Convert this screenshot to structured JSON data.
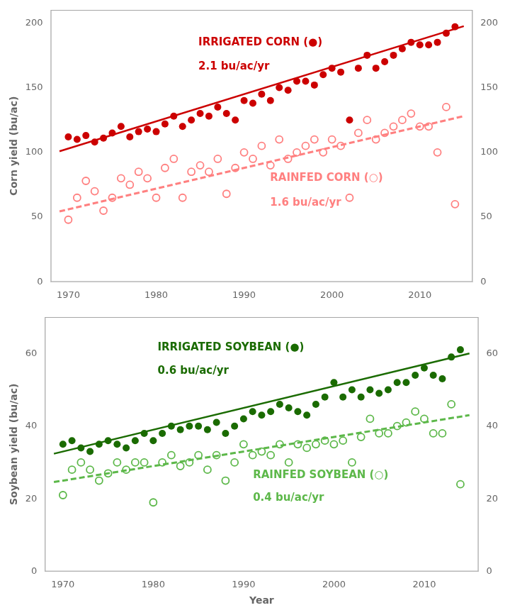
{
  "chart_data": [
    {
      "type": "scatter",
      "ylabel": "Corn yield (bu/ac)",
      "xlim": [
        1968,
        2016
      ],
      "xticks": [
        1970,
        1980,
        1990,
        2000,
        2010
      ],
      "ylim": [
        0,
        210
      ],
      "yticks": [
        0,
        50,
        100,
        150,
        200
      ],
      "y2lim": [
        0,
        210
      ],
      "y2ticks": [
        0,
        50,
        100,
        150,
        200
      ],
      "grid": false,
      "series": [
        {
          "type": "scatter",
          "marker": "circle",
          "color": "#CC0000",
          "x": [
            1970,
            1971,
            1972,
            1973,
            1974,
            1975,
            1976,
            1977,
            1978,
            1979,
            1980,
            1981,
            1982,
            1983,
            1984,
            1985,
            1986,
            1987,
            1988,
            1989,
            1990,
            1991,
            1992,
            1993,
            1994,
            1995,
            1996,
            1997,
            1998,
            1999,
            2000,
            2001,
            2002,
            2003,
            2004,
            2005,
            2006,
            2007,
            2008,
            2009,
            2010,
            2011,
            2012,
            2013,
            2014
          ],
          "values": [
            112,
            110,
            113,
            108,
            111,
            115,
            120,
            112,
            116,
            118,
            116,
            122,
            128,
            120,
            125,
            130,
            128,
            135,
            130,
            125,
            140,
            138,
            145,
            140,
            150,
            148,
            155,
            155,
            152,
            160,
            165,
            162,
            125,
            165,
            175,
            165,
            170,
            175,
            180,
            185,
            183,
            183,
            185,
            192,
            197
          ]
        },
        {
          "type": "scatter",
          "marker": "open_circle",
          "color": "#FF8080",
          "x": [
            1970,
            1971,
            1972,
            1973,
            1974,
            1975,
            1976,
            1977,
            1978,
            1979,
            1980,
            1981,
            1982,
            1983,
            1984,
            1985,
            1986,
            1987,
            1988,
            1989,
            1990,
            1991,
            1992,
            1993,
            1994,
            1995,
            1996,
            1997,
            1998,
            1999,
            2000,
            2001,
            2002,
            2003,
            2004,
            2005,
            2006,
            2007,
            2008,
            2009,
            2010,
            2011,
            2012,
            2013,
            2014
          ],
          "values": [
            48,
            65,
            78,
            70,
            55,
            65,
            80,
            75,
            85,
            80,
            65,
            88,
            95,
            65,
            85,
            90,
            85,
            95,
            68,
            88,
            100,
            95,
            105,
            90,
            110,
            95,
            100,
            105,
            110,
            100,
            110,
            105,
            65,
            115,
            125,
            110,
            115,
            120,
            125,
            130,
            120,
            120,
            100,
            135,
            60
          ]
        },
        {
          "type": "line",
          "line_style": "solid",
          "color": "#CC0000",
          "x": [
            1969,
            2015
          ],
          "values": [
            100.9,
            197.5
          ]
        },
        {
          "type": "line",
          "line_style": "dashed",
          "color": "#FF8080",
          "x": [
            1969,
            2015
          ],
          "values": [
            54.4,
            128
          ]
        }
      ],
      "annotations": [
        {
          "text": "IRRIGATED CORN (●)",
          "color": "#CC0000"
        },
        {
          "text": "2.1 bu/ac/yr",
          "color": "#CC0000"
        },
        {
          "text": "RAINFED CORN (○)",
          "color": "#FF8080"
        },
        {
          "text": "1.6 bu/ac/yr",
          "color": "#FF8080"
        }
      ]
    },
    {
      "type": "scatter",
      "ylabel": "Soybean yield (bu/ac)",
      "xlabel": "Year",
      "xlim": [
        1968,
        2016
      ],
      "xticks": [
        1970,
        1980,
        1990,
        2000,
        2010
      ],
      "ylim": [
        0,
        70
      ],
      "yticks": [
        0,
        20,
        40,
        60
      ],
      "y2lim": [
        0,
        70
      ],
      "y2ticks": [
        0,
        20,
        40,
        60
      ],
      "grid": false,
      "series": [
        {
          "type": "scatter",
          "marker": "circle",
          "color": "#1a6b00",
          "x": [
            1970,
            1971,
            1972,
            1973,
            1974,
            1975,
            1976,
            1977,
            1978,
            1979,
            1980,
            1981,
            1982,
            1983,
            1984,
            1985,
            1986,
            1987,
            1988,
            1989,
            1990,
            1991,
            1992,
            1993,
            1994,
            1995,
            1996,
            1997,
            1998,
            1999,
            2000,
            2001,
            2002,
            2003,
            2004,
            2005,
            2006,
            2007,
            2008,
            2009,
            2010,
            2011,
            2012,
            2013,
            2014
          ],
          "values": [
            35,
            36,
            34,
            33,
            35,
            36,
            35,
            34,
            36,
            38,
            36,
            38,
            40,
            39,
            40,
            40,
            39,
            41,
            38,
            40,
            42,
            44,
            43,
            44,
            46,
            45,
            44,
            43,
            46,
            48,
            52,
            48,
            50,
            48,
            50,
            49,
            50,
            52,
            52,
            54,
            56,
            54,
            53,
            59,
            61
          ]
        },
        {
          "type": "scatter",
          "marker": "open_circle",
          "color": "#5db84a",
          "x": [
            1970,
            1971,
            1972,
            1973,
            1974,
            1975,
            1976,
            1977,
            1978,
            1979,
            1980,
            1981,
            1982,
            1983,
            1984,
            1985,
            1986,
            1987,
            1988,
            1989,
            1990,
            1991,
            1992,
            1993,
            1994,
            1995,
            1996,
            1997,
            1998,
            1999,
            2000,
            2001,
            2002,
            2003,
            2004,
            2005,
            2006,
            2007,
            2008,
            2009,
            2010,
            2011,
            2012,
            2013,
            2014
          ],
          "values": [
            21,
            28,
            30,
            28,
            25,
            27,
            30,
            28,
            30,
            30,
            19,
            30,
            32,
            29,
            30,
            32,
            28,
            32,
            25,
            30,
            35,
            32,
            33,
            32,
            35,
            30,
            35,
            34,
            35,
            36,
            35,
            36,
            30,
            37,
            42,
            38,
            38,
            40,
            41,
            44,
            42,
            38,
            38,
            46,
            24
          ]
        },
        {
          "type": "line",
          "line_style": "solid",
          "color": "#1a6b00",
          "x": [
            1969,
            2015
          ],
          "values": [
            32.4,
            60
          ]
        },
        {
          "type": "line",
          "line_style": "dashed",
          "color": "#5db84a",
          "x": [
            1969,
            2015
          ],
          "values": [
            24.6,
            43
          ]
        }
      ],
      "annotations": [
        {
          "text": "IRRIGATED SOYBEAN (●)",
          "color": "#1a6b00"
        },
        {
          "text": "0.6 bu/ac/yr",
          "color": "#1a6b00"
        },
        {
          "text": "RAINFED SOYBEAN (○)",
          "color": "#5db84a"
        },
        {
          "text": "0.4 bu/ac/yr",
          "color": "#5db84a"
        }
      ]
    }
  ]
}
